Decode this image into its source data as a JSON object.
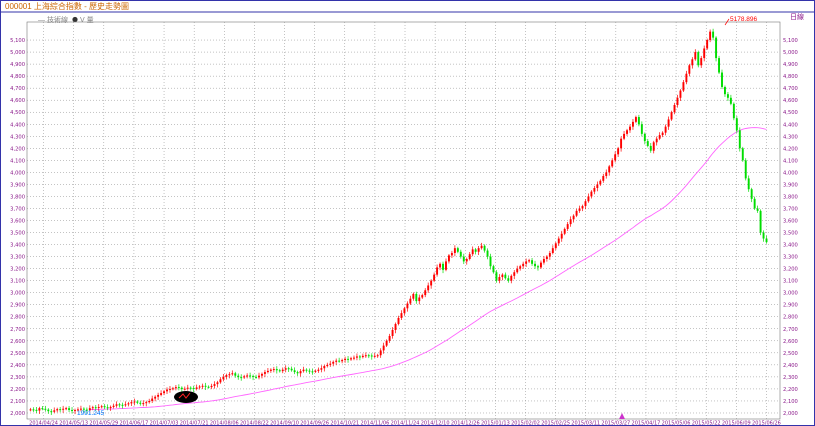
{
  "header": {
    "title": "000001 上海綜合指數 - 歷史走勢圖",
    "legend_line": "— 技術線",
    "legend_volume": "V 量",
    "y_unit_label": "日線"
  },
  "annotations": {
    "high_label": "5178.896",
    "low_label": "1991.245"
  },
  "colors": {
    "up": "#ff0000",
    "down": "#00dd00",
    "ma": "#ff66ff",
    "grid": "#888888",
    "axis_text": "#8b1a8b",
    "title": "#cc6600",
    "frame": "#3333aa",
    "marker": "#000000"
  },
  "chart_data": {
    "type": "candlestick",
    "y_range": [
      1950,
      5250
    ],
    "y_ticks": [
      2000,
      2100,
      2200,
      2300,
      2400,
      2500,
      2600,
      2700,
      2800,
      2900,
      3000,
      3100,
      3200,
      3300,
      3400,
      3500,
      3600,
      3700,
      3800,
      3900,
      4000,
      4100,
      4200,
      4300,
      4400,
      4500,
      4600,
      4700,
      4800,
      4900,
      5000,
      5100
    ],
    "y_tick_labels": [
      "2,000",
      "2,100",
      "2,200",
      "2,300",
      "2,400",
      "2,500",
      "2,600",
      "2,700",
      "2,800",
      "2,900",
      "3,000",
      "3,100",
      "3,200",
      "3,300",
      "3,400",
      "3,500",
      "3,600",
      "3,700",
      "3,800",
      "3,900",
      "4,000",
      "4,100",
      "4,200",
      "4,300",
      "4,400",
      "4,500",
      "4,600",
      "4,700",
      "4,800",
      "4,900",
      "5,000",
      "5,100"
    ],
    "x_labels": [
      "2014/04/24",
      "2014/05/13",
      "2014/05/29",
      "2014/06/17",
      "2014/07/03",
      "2014/07/21",
      "2014/08/06",
      "2014/08/22",
      "2014/09/10",
      "2014/09/26",
      "2014/10/21",
      "2014/11/06",
      "2014/11/24",
      "2014/12/10",
      "2014/12/26",
      "2015/01/13",
      "2015/02/02",
      "2015/02/25",
      "2015/03/11",
      "2015/03/27",
      "2015/04/17",
      "2015/05/06",
      "2015/05/22",
      "2015/06/09",
      "2015/06/26"
    ],
    "close": [
      2030,
      2026,
      2020,
      2040,
      2035,
      2028,
      2015,
      2010,
      2022,
      2032,
      2028,
      2035,
      2040,
      2025,
      2018,
      2024,
      2030,
      2036,
      2028,
      2022,
      2040,
      2048,
      2042,
      2050,
      2056,
      2048,
      2045,
      2050,
      2060,
      2072,
      2068,
      2064,
      2072,
      2080,
      2090,
      2095,
      2085,
      2078,
      2082,
      2090,
      2100,
      2120,
      2135,
      2150,
      2165,
      2180,
      2195,
      2200,
      2205,
      2215,
      2210,
      2198,
      2202,
      2210,
      2208,
      2200,
      2212,
      2220,
      2226,
      2218,
      2215,
      2225,
      2240,
      2255,
      2280,
      2300,
      2315,
      2322,
      2330,
      2310,
      2298,
      2295,
      2305,
      2312,
      2308,
      2300,
      2296,
      2310,
      2325,
      2340,
      2350,
      2360,
      2365,
      2355,
      2348,
      2360,
      2372,
      2368,
      2355,
      2340,
      2330,
      2348,
      2360,
      2352,
      2346,
      2345,
      2350,
      2360,
      2372,
      2390,
      2400,
      2410,
      2425,
      2435,
      2430,
      2440,
      2450,
      2445,
      2455,
      2460,
      2470,
      2465,
      2475,
      2480,
      2478,
      2470,
      2475,
      2480,
      2520,
      2560,
      2600,
      2640,
      2690,
      2740,
      2790,
      2830,
      2870,
      2910,
      2950,
      2990,
      2930,
      2960,
      2980,
      3020,
      3060,
      3100,
      3150,
      3210,
      3240,
      3190,
      3260,
      3310,
      3330,
      3370,
      3340,
      3300,
      3260,
      3280,
      3320,
      3360,
      3340,
      3370,
      3390,
      3350,
      3300,
      3220,
      3170,
      3100,
      3130,
      3150,
      3120,
      3100,
      3140,
      3170,
      3200,
      3220,
      3240,
      3260,
      3270,
      3240,
      3220,
      3210,
      3250,
      3280,
      3300,
      3330,
      3370,
      3410,
      3450,
      3490,
      3530,
      3570,
      3610,
      3640,
      3680,
      3700,
      3720,
      3760,
      3800,
      3840,
      3870,
      3900,
      3930,
      3970,
      4000,
      4050,
      4100,
      4150,
      4200,
      4280,
      4320,
      4350,
      4380,
      4420,
      4460,
      4400,
      4320,
      4260,
      4220,
      4180,
      4250,
      4280,
      4310,
      4330,
      4380,
      4440,
      4500,
      4560,
      4620,
      4680,
      4750,
      4820,
      4890,
      4940,
      5000,
      4890,
      4950,
      5030,
      5100,
      5170,
      5120,
      4950,
      4830,
      4710,
      4650,
      4620,
      4570,
      4450,
      4350,
      4200,
      4100,
      3950,
      3860,
      3780,
      3700,
      3680,
      3500,
      3450,
      3420
    ]
  }
}
